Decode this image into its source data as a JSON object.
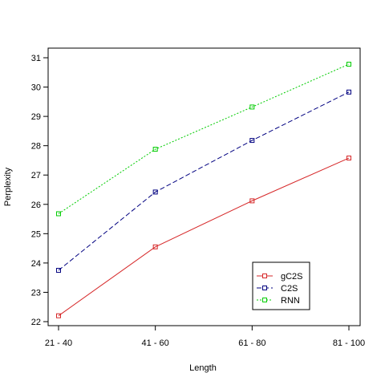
{
  "chart_data": {
    "type": "line",
    "categories": [
      "21 - 40",
      "41 - 60",
      "61 - 80",
      "81 - 100"
    ],
    "xlabel": "Length",
    "ylabel": "Perplexity",
    "ylim": [
      22,
      31
    ],
    "yticks": [
      22,
      23,
      24,
      25,
      26,
      27,
      28,
      29,
      30,
      31
    ],
    "grid": false,
    "legend_position": "bottom-right",
    "series": [
      {
        "name": "gC2S",
        "color": "#d62728",
        "dash": "solid",
        "values": [
          22.2,
          24.55,
          26.12,
          27.58
        ]
      },
      {
        "name": "C2S",
        "color": "#000080",
        "dash": "dashed",
        "values": [
          23.75,
          26.42,
          28.18,
          29.83
        ]
      },
      {
        "name": "RNN",
        "color": "#00cc00",
        "dash": "dotted",
        "values": [
          25.68,
          27.88,
          29.32,
          30.78
        ]
      }
    ]
  }
}
